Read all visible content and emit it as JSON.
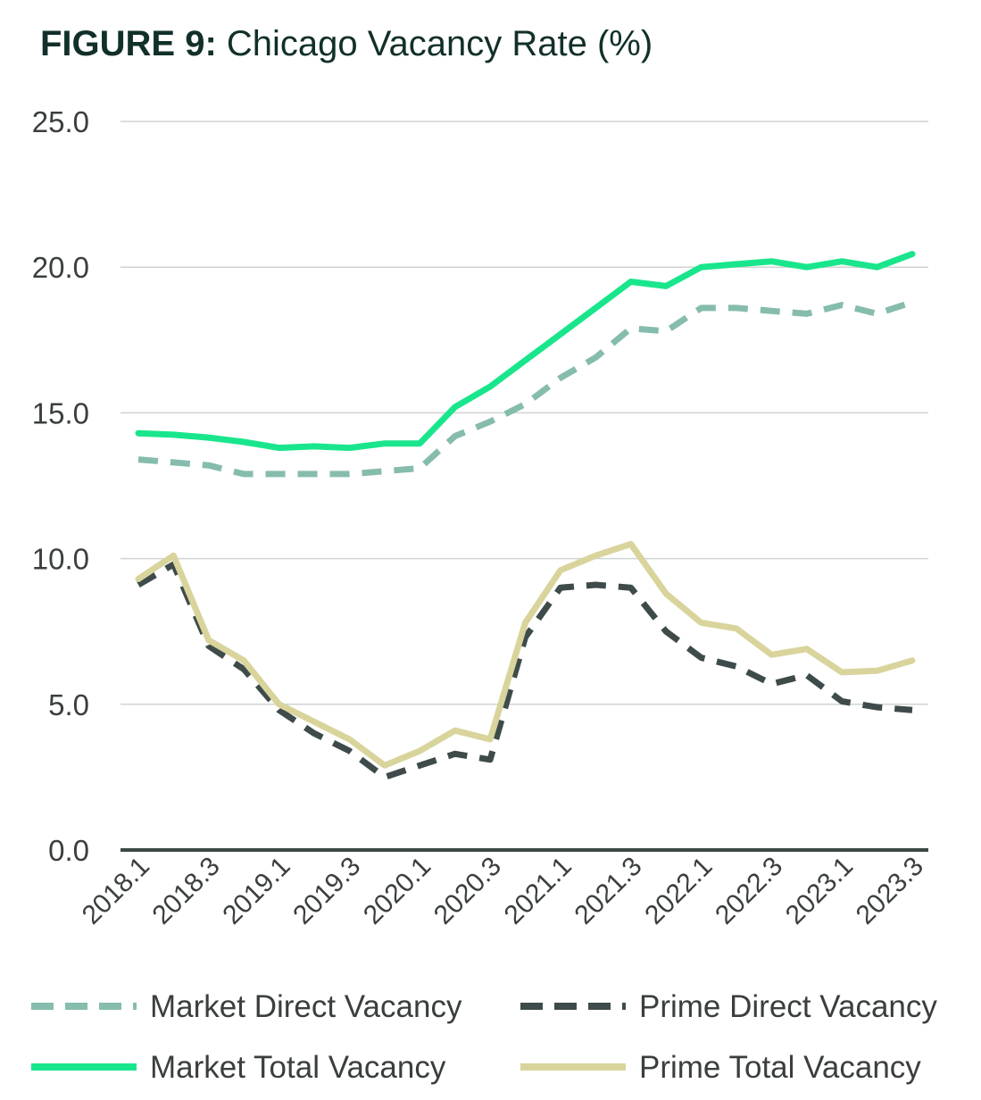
{
  "title": {
    "lead": "FIGURE 9:",
    "rest": " Chicago Vacancy Rate (%)"
  },
  "chart_data": {
    "type": "line",
    "title": "FIGURE 9: Chicago Vacancy Rate (%)",
    "xlabel": "",
    "ylabel": "",
    "ylim": [
      0,
      25
    ],
    "yticks": [
      "0.0",
      "5.0",
      "10.0",
      "15.0",
      "20.0",
      "25.0"
    ],
    "grid": true,
    "legend_position": "bottom",
    "x": [
      "2018.1",
      "2018.2",
      "2018.3",
      "2018.4",
      "2019.1",
      "2019.2",
      "2019.3",
      "2019.4",
      "2020.1",
      "2020.2",
      "2020.3",
      "2020.4",
      "2021.1",
      "2021.2",
      "2021.3",
      "2021.4",
      "2022.1",
      "2022.2",
      "2022.3",
      "2022.4",
      "2023.1",
      "2023.2",
      "2023.3"
    ],
    "xtick_labels": [
      "2018.1",
      "2018.3",
      "2019.1",
      "2019.3",
      "2020.1",
      "2020.3",
      "2021.1",
      "2021.3",
      "2022.1",
      "2022.3",
      "2023.1",
      "2023.3"
    ],
    "series": [
      {
        "name": "Market Direct Vacancy",
        "color": "#86bcad",
        "style": "dashed",
        "values": [
          13.4,
          13.3,
          13.2,
          12.9,
          12.9,
          12.9,
          12.9,
          13.0,
          13.1,
          14.2,
          14.7,
          15.3,
          16.2,
          16.9,
          17.9,
          17.8,
          18.6,
          18.6,
          18.5,
          18.4,
          18.7,
          18.4,
          18.8
        ]
      },
      {
        "name": "Prime Direct Vacancy",
        "color": "#3e4b4a",
        "style": "dashed",
        "values": [
          9.1,
          9.8,
          7.0,
          6.2,
          4.8,
          4.0,
          3.4,
          2.5,
          2.9,
          3.3,
          3.1,
          7.3,
          9.0,
          9.1,
          9.0,
          7.5,
          6.6,
          6.3,
          5.7,
          6.0,
          5.1,
          4.9,
          4.8
        ]
      },
      {
        "name": "Market Total Vacancy",
        "color": "#19e68c",
        "style": "solid",
        "values": [
          14.3,
          14.25,
          14.15,
          14.0,
          13.8,
          13.85,
          13.8,
          13.95,
          13.95,
          15.2,
          15.9,
          16.8,
          17.7,
          18.6,
          19.5,
          19.35,
          20.0,
          20.1,
          20.2,
          20.0,
          20.2,
          20.0,
          20.45
        ]
      },
      {
        "name": "Prime Total Vacancy",
        "color": "#d8d49c",
        "style": "solid",
        "values": [
          9.3,
          10.1,
          7.2,
          6.5,
          5.0,
          4.4,
          3.8,
          2.9,
          3.4,
          4.1,
          3.8,
          7.8,
          9.6,
          10.1,
          10.5,
          8.8,
          7.8,
          7.6,
          6.7,
          6.9,
          6.1,
          6.15,
          6.5
        ]
      }
    ]
  }
}
